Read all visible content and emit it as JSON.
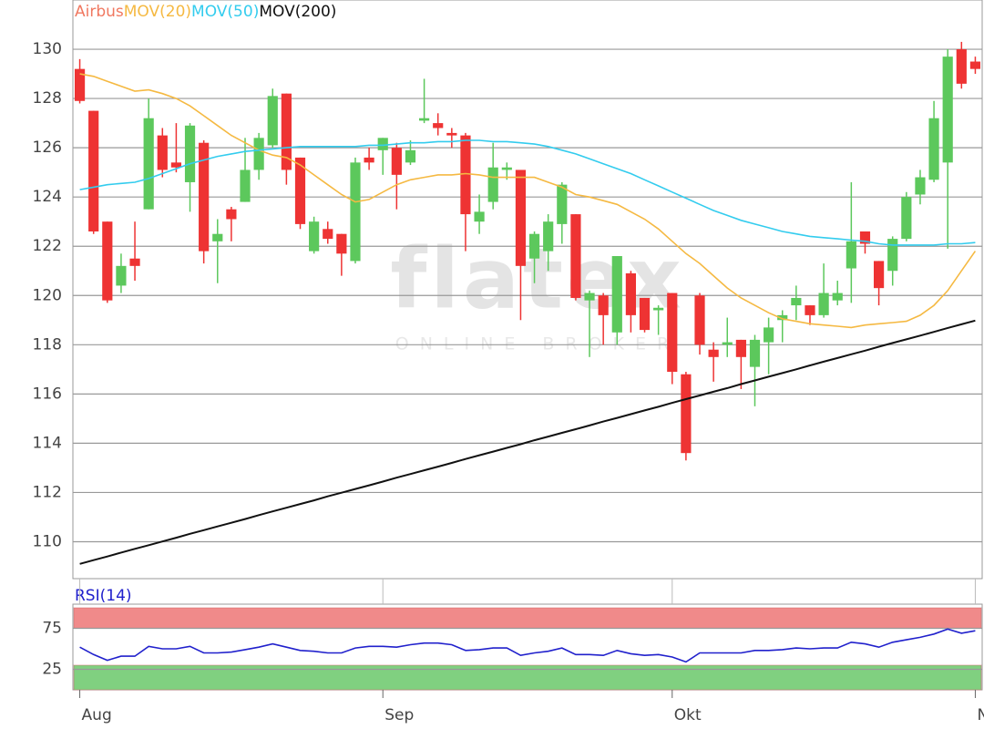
{
  "chart_data": [
    {
      "type": "candlestick",
      "categories": [
        "Aug",
        null,
        null,
        null,
        null,
        null,
        null,
        null,
        null,
        null,
        null,
        null,
        null,
        null,
        null,
        null,
        null,
        null,
        null,
        null,
        null,
        null,
        "Sep",
        null,
        null,
        null,
        null,
        null,
        null,
        null,
        null,
        null,
        null,
        null,
        null,
        null,
        null,
        null,
        null,
        null,
        null,
        null,
        null,
        "Okt",
        null,
        null,
        null,
        null,
        null,
        null,
        null,
        null,
        null,
        null,
        null,
        null,
        null,
        null,
        null,
        null,
        null,
        null,
        null,
        null,
        null,
        "Nov"
      ],
      "ylim": [
        108.5,
        132
      ],
      "yticks": [
        110,
        112,
        114,
        116,
        118,
        120,
        122,
        124,
        126,
        128,
        130
      ],
      "grid": true,
      "series": [
        {
          "name": "Airbus",
          "type": "candlestick",
          "color": "#f07860",
          "up_color": "#5cc85c",
          "down_color": "#ee3333",
          "open": [
            129.2,
            127.5,
            123,
            120.4,
            121.5,
            123.5,
            126.5,
            125.4,
            124.6,
            126.2,
            122.2,
            123.5,
            123.8,
            125.1,
            126.1,
            128.2,
            125.6,
            121.8,
            122.7,
            122.5,
            121.4,
            125.6,
            125.9,
            126,
            125.4,
            127.1,
            127,
            126.6,
            126.5,
            123,
            123.8,
            125.1,
            125.1,
            121.5,
            121.8,
            122.9,
            123.3,
            119.8,
            120,
            118.5,
            120.9,
            119.9,
            119.4,
            120.1,
            116.8,
            120,
            117.8,
            118,
            118.2,
            117.1,
            118.1,
            119,
            119.6,
            119.6,
            119.2,
            119.8,
            121.1,
            122.6,
            121.4,
            121,
            122.3,
            124.1,
            124.7,
            125.4,
            130,
            129.5
          ],
          "high": [
            129.6,
            127.5,
            123,
            121.7,
            123,
            128,
            126.8,
            127,
            127,
            126.3,
            123.1,
            123.6,
            126.4,
            126.6,
            128.4,
            128.2,
            125.6,
            123.2,
            123,
            122.5,
            125.6,
            126,
            126.4,
            126.2,
            126.3,
            128.8,
            127.4,
            126.8,
            126.6,
            124.1,
            126.2,
            125.4,
            125.1,
            122.6,
            123.3,
            124.6,
            123.3,
            120.2,
            120.1,
            121.6,
            121,
            119.9,
            119.6,
            120.1,
            116.9,
            120.1,
            118.1,
            119.1,
            118.2,
            118.4,
            119.1,
            119.4,
            120.4,
            119.6,
            121.3,
            120.6,
            124.6,
            122.6,
            121.4,
            122.4,
            124.2,
            125.1,
            127.9,
            130,
            130.3,
            129.7
          ],
          "low": [
            127.8,
            122.5,
            119.7,
            120.1,
            120.6,
            123.5,
            124.8,
            125,
            123.4,
            121.3,
            120.5,
            122.2,
            123.8,
            124.7,
            126,
            124.5,
            122.7,
            121.7,
            122.1,
            120.8,
            121.3,
            125.1,
            124.9,
            123.5,
            125.3,
            127,
            126.5,
            126,
            121.8,
            122.5,
            123.5,
            124.7,
            119,
            120.5,
            121,
            122.1,
            119.8,
            117.5,
            118,
            118,
            118.5,
            118.5,
            118.4,
            116.4,
            113.3,
            117.6,
            116.5,
            117.5,
            116.2,
            115.5,
            116.8,
            118.1,
            119,
            118.8,
            119.1,
            119.6,
            119.7,
            121.7,
            119.6,
            120.4,
            122.2,
            123.7,
            124.6,
            121.9,
            128.4,
            129
          ],
          "close": [
            127.9,
            122.6,
            119.8,
            121.2,
            121.2,
            127.2,
            125.1,
            125.2,
            126.9,
            121.8,
            122.5,
            123.1,
            125.1,
            126.4,
            128.1,
            125.1,
            122.9,
            123,
            122.3,
            121.7,
            125.4,
            125.4,
            126.4,
            124.9,
            125.9,
            127.2,
            126.8,
            126.5,
            123.3,
            123.4,
            125.2,
            125.2,
            121.2,
            122.5,
            123,
            124.5,
            119.9,
            120.1,
            119.2,
            121.6,
            119.2,
            118.6,
            119.5,
            116.9,
            113.6,
            118,
            117.5,
            118.1,
            117.5,
            118.2,
            118.7,
            119.2,
            119.9,
            119.2,
            120.1,
            120.1,
            122.2,
            122.1,
            120.3,
            122.3,
            124,
            124.8,
            127.2,
            129.7,
            128.6,
            129.2
          ]
        },
        {
          "name": "MOV(20)",
          "type": "line",
          "color": "#f5b942",
          "values": [
            129,
            128.9,
            128.7,
            128.5,
            128.3,
            128.35,
            128.2,
            128,
            127.7,
            127.3,
            126.9,
            126.5,
            126.2,
            125.9,
            125.7,
            125.6,
            125.3,
            124.9,
            124.5,
            124.1,
            123.8,
            123.9,
            124.2,
            124.5,
            124.7,
            124.8,
            124.9,
            124.9,
            124.95,
            124.9,
            124.8,
            124.8,
            124.8,
            124.8,
            124.6,
            124.4,
            124.1,
            124,
            123.85,
            123.7,
            123.4,
            123.1,
            122.7,
            122.2,
            121.7,
            121.3,
            120.8,
            120.3,
            119.9,
            119.6,
            119.3,
            119.05,
            118.95,
            118.85,
            118.8,
            118.75,
            118.7,
            118.8,
            118.85,
            118.9,
            118.95,
            119.2,
            119.6,
            120.2,
            121,
            121.8
          ]
        },
        {
          "name": "MOV(50)",
          "type": "line",
          "color": "#33ccee",
          "values": [
            124.3,
            124.4,
            124.5,
            124.55,
            124.6,
            124.75,
            124.95,
            125.15,
            125.35,
            125.5,
            125.65,
            125.75,
            125.85,
            125.9,
            125.95,
            126,
            126.05,
            126.05,
            126.05,
            126.05,
            126.05,
            126.1,
            126.1,
            126.15,
            126.2,
            126.2,
            126.25,
            126.25,
            126.3,
            126.3,
            126.25,
            126.25,
            126.2,
            126.15,
            126.05,
            125.9,
            125.75,
            125.55,
            125.35,
            125.15,
            124.95,
            124.7,
            124.45,
            124.2,
            123.95,
            123.7,
            123.45,
            123.25,
            123.05,
            122.9,
            122.75,
            122.6,
            122.5,
            122.4,
            122.35,
            122.3,
            122.25,
            122.2,
            122.1,
            122.05,
            122.05,
            122.05,
            122.05,
            122.1,
            122.1,
            122.15
          ]
        },
        {
          "name": "MOV(200)",
          "type": "line",
          "color": "#111111",
          "values": [
            109.1,
            109.25,
            109.4,
            109.56,
            109.71,
            109.86,
            110.01,
            110.16,
            110.32,
            110.47,
            110.62,
            110.77,
            110.92,
            111.08,
            111.23,
            111.38,
            111.53,
            111.68,
            111.84,
            111.99,
            112.14,
            112.29,
            112.44,
            112.6,
            112.75,
            112.9,
            113.05,
            113.2,
            113.36,
            113.51,
            113.66,
            113.81,
            113.96,
            114.12,
            114.27,
            114.42,
            114.57,
            114.72,
            114.88,
            115.03,
            115.18,
            115.33,
            115.48,
            115.64,
            115.79,
            115.94,
            116.09,
            116.24,
            116.4,
            116.55,
            116.7,
            116.85,
            117,
            117.16,
            117.31,
            117.46,
            117.61,
            117.76,
            117.92,
            118.07,
            118.22,
            118.37,
            118.52,
            118.68,
            118.83,
            118.98
          ]
        }
      ]
    },
    {
      "type": "line",
      "ylim": [
        0,
        100
      ],
      "yticks": [
        25,
        75
      ],
      "grid": true,
      "bands": [
        {
          "range": [
            75,
            100
          ],
          "color": "#f08a8a"
        },
        {
          "range": [
            0,
            30
          ],
          "color": "#80d080"
        }
      ],
      "series": [
        {
          "name": "RSI(14)",
          "type": "line",
          "color": "#2020cc",
          "values": [
            52,
            43,
            36,
            41,
            41,
            53,
            50,
            50,
            53,
            45,
            45,
            46,
            49,
            52,
            56,
            52,
            48,
            47,
            45,
            45,
            51,
            53,
            53,
            52,
            55,
            57,
            57,
            55,
            48,
            49,
            51,
            51,
            42,
            45,
            47,
            51,
            43,
            43,
            42,
            48,
            44,
            42,
            43,
            40,
            34,
            45,
            45,
            45,
            45,
            48,
            48,
            49,
            51,
            50,
            51,
            51,
            58,
            56,
            52,
            58,
            61,
            64,
            68,
            74,
            69,
            72
          ]
        }
      ]
    }
  ],
  "watermark": {
    "logo": "flatex",
    "tagline": "ONLINE BROKER"
  }
}
